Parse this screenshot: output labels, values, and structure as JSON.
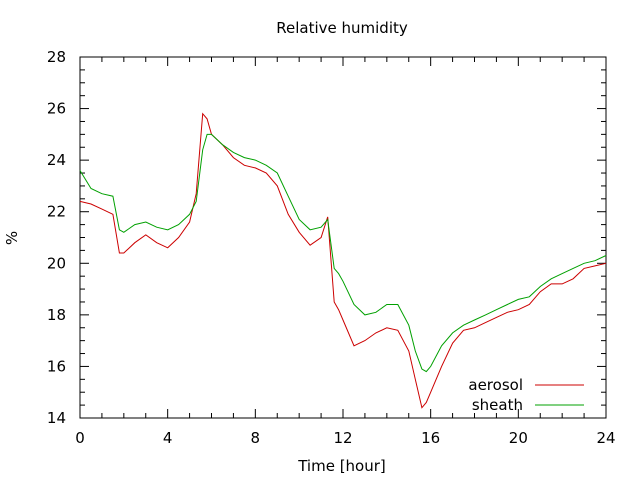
{
  "chart_data": {
    "type": "line",
    "title": "Relative humidity",
    "xlabel": "Time [hour]",
    "ylabel": "%",
    "xlim": [
      0,
      24
    ],
    "ylim": [
      14,
      28
    ],
    "xticks": [
      0,
      4,
      8,
      12,
      16,
      20,
      24
    ],
    "yticks": [
      14,
      16,
      18,
      20,
      22,
      24,
      26,
      28
    ],
    "grid": false,
    "legend_position": "bottom-right",
    "series": [
      {
        "name": "aerosol",
        "color": "#cc0000",
        "x": [
          0,
          0.5,
          1,
          1.5,
          1.8,
          2,
          2.5,
          3,
          3.5,
          4,
          4.5,
          5,
          5.3,
          5.6,
          5.8,
          6,
          6.5,
          7,
          7.5,
          8,
          8.5,
          9,
          9.5,
          10,
          10.5,
          11,
          11.3,
          11.6,
          11.8,
          12,
          12.5,
          13,
          13.5,
          14,
          14.5,
          15,
          15.3,
          15.6,
          15.8,
          16,
          16.5,
          17,
          17.5,
          18,
          18.5,
          19,
          19.5,
          20,
          20.5,
          21,
          21.5,
          22,
          22.5,
          23,
          23.5,
          24
        ],
        "y": [
          22.4,
          22.3,
          22.1,
          21.9,
          20.4,
          20.4,
          20.8,
          21.1,
          20.8,
          20.6,
          21.0,
          21.6,
          22.7,
          25.8,
          25.6,
          25.0,
          24.6,
          24.1,
          23.8,
          23.7,
          23.5,
          23.0,
          21.9,
          21.2,
          20.7,
          21.0,
          21.8,
          18.5,
          18.2,
          17.8,
          16.8,
          17.0,
          17.3,
          17.5,
          17.4,
          16.6,
          15.5,
          14.4,
          14.6,
          15.0,
          16.0,
          16.9,
          17.4,
          17.5,
          17.7,
          17.9,
          18.1,
          18.2,
          18.4,
          18.9,
          19.2,
          19.2,
          19.4,
          19.8,
          19.9,
          20.0
        ]
      },
      {
        "name": "sheath",
        "color": "#00a000",
        "x": [
          0,
          0.5,
          1,
          1.5,
          1.8,
          2,
          2.5,
          3,
          3.5,
          4,
          4.5,
          5,
          5.3,
          5.6,
          5.8,
          6,
          6.5,
          7,
          7.5,
          8,
          8.5,
          9,
          9.5,
          10,
          10.5,
          11,
          11.3,
          11.6,
          11.8,
          12,
          12.5,
          13,
          13.5,
          14,
          14.5,
          15,
          15.3,
          15.6,
          15.8,
          16,
          16.5,
          17,
          17.5,
          18,
          18.5,
          19,
          19.5,
          20,
          20.5,
          21,
          21.5,
          22,
          22.5,
          23,
          23.5,
          24
        ],
        "y": [
          23.6,
          22.9,
          22.7,
          22.6,
          21.3,
          21.2,
          21.5,
          21.6,
          21.4,
          21.3,
          21.5,
          21.9,
          22.4,
          24.4,
          25.0,
          25.0,
          24.6,
          24.3,
          24.1,
          24.0,
          23.8,
          23.5,
          22.6,
          21.7,
          21.3,
          21.4,
          21.7,
          19.8,
          19.6,
          19.3,
          18.4,
          18.0,
          18.1,
          18.4,
          18.4,
          17.6,
          16.6,
          15.9,
          15.8,
          16.0,
          16.8,
          17.3,
          17.6,
          17.8,
          18.0,
          18.2,
          18.4,
          18.6,
          18.7,
          19.1,
          19.4,
          19.6,
          19.8,
          20.0,
          20.1,
          20.3
        ]
      }
    ]
  }
}
